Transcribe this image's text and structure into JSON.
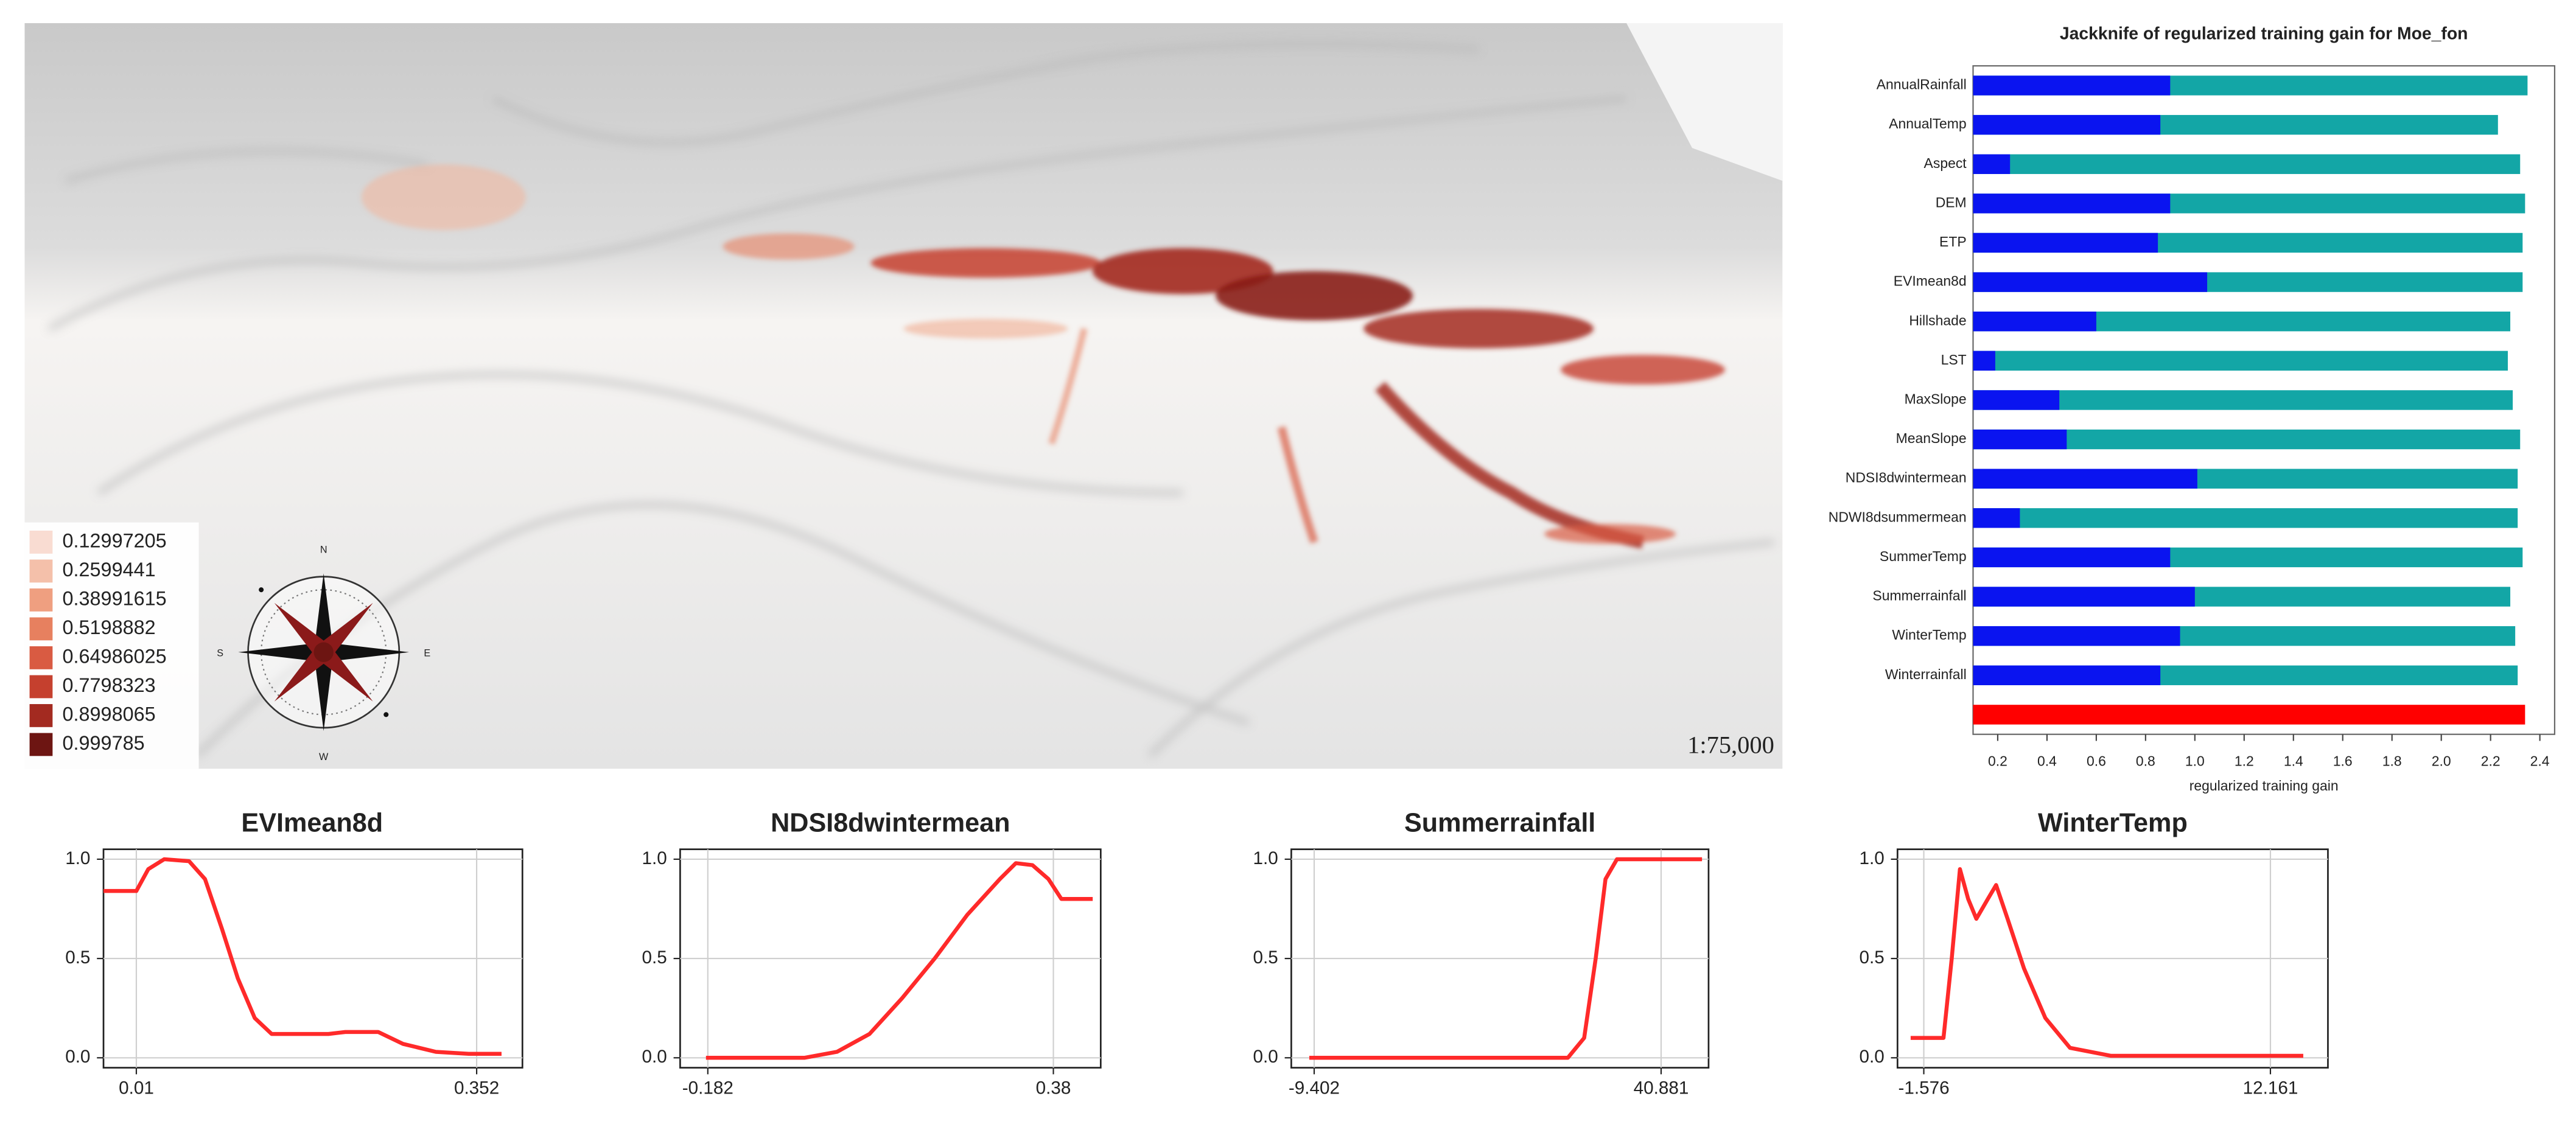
{
  "map": {
    "legend": {
      "labels": [
        "0.12997205",
        "0.2599441",
        "0.38991615",
        "0.5198882",
        "0.64986025",
        "0.7798323",
        "0.8998065",
        "0.999785"
      ],
      "colors": [
        "#f9dcd2",
        "#f4c0aa",
        "#ef9f80",
        "#e7805f",
        "#d95b42",
        "#c5402e",
        "#a32a20",
        "#6d1512"
      ]
    },
    "scale": "1:75,000",
    "compass": [
      "N",
      "S",
      "E",
      "W"
    ]
  },
  "chart_data": [
    {
      "type": "bar",
      "orientation": "horizontal",
      "title": "Jackknife of regularized training gain for Moe_fon",
      "x_label": "regularized training gain",
      "categories": [
        "AnnualRainfall",
        "AnnualTemp",
        "Aspect",
        "DEM",
        "ETP",
        "EVImean8d",
        "Hillshade",
        "LST",
        "MaxSlope",
        "MeanSlope",
        "NDSI8dwintermean",
        "NDWI8dsummermean",
        "SummerTemp",
        "Summerrainfall",
        "WinterTemp",
        "Winterrainfall",
        null
      ],
      "series": [
        {
          "color": "#13a6a6",
          "values": [
            2.35,
            2.23,
            2.32,
            2.34,
            2.33,
            2.33,
            2.28,
            2.27,
            2.29,
            2.32,
            2.31,
            2.31,
            2.33,
            2.28,
            2.3,
            2.31,
            null
          ]
        },
        {
          "color": "#0a14f0",
          "values": [
            0.9,
            0.86,
            0.25,
            0.9,
            0.85,
            1.05,
            0.6,
            0.19,
            0.45,
            0.48,
            1.01,
            0.29,
            0.9,
            1.0,
            0.94,
            0.86,
            null
          ]
        },
        {
          "color": "#ff0000",
          "values": [
            null,
            null,
            null,
            null,
            null,
            null,
            null,
            null,
            null,
            null,
            null,
            null,
            null,
            null,
            null,
            null,
            2.34
          ]
        }
      ],
      "xlim": [
        0.1,
        2.46
      ],
      "xticks": [
        0.2,
        0.4,
        0.6,
        0.8,
        {
          "value": 1,
          "label": "1.0"
        },
        1.2,
        1.4,
        1.6,
        1.8,
        {
          "value": 2,
          "label": "2.0"
        },
        2.2,
        2.4
      ]
    },
    {
      "type": "line",
      "title": "EVImean8d",
      "color": "#ff2a2a",
      "x": [
        -0.023,
        0.01,
        0.022,
        0.038,
        0.063,
        0.079,
        0.096,
        0.112,
        0.129,
        0.146,
        0.203,
        0.22,
        0.253,
        0.278,
        0.311,
        0.344,
        0.377
      ],
      "values": [
        0.84,
        0.84,
        0.95,
        1.0,
        0.99,
        0.9,
        0.65,
        0.4,
        0.2,
        0.12,
        0.12,
        0.13,
        0.13,
        0.07,
        0.03,
        0.02,
        0.02
      ],
      "xlim": [
        -0.023,
        0.398
      ],
      "ylim": [
        -0.05,
        1.05
      ],
      "xticks": [
        0.01,
        0.352
      ],
      "yticks": [
        {
          "value": 0,
          "label": "0.0"
        },
        0.5,
        {
          "value": 1,
          "label": "1.0"
        }
      ],
      "grid": true
    },
    {
      "type": "line",
      "title": "NDSI8dwintermean",
      "color": "#ff2a2a",
      "x": [
        -0.185,
        -0.025,
        0.028,
        0.081,
        0.134,
        0.187,
        0.24,
        0.293,
        0.319,
        0.346,
        0.372,
        0.393,
        0.444
      ],
      "values": [
        0,
        0,
        0.03,
        0.12,
        0.3,
        0.5,
        0.72,
        0.9,
        0.98,
        0.97,
        0.9,
        0.8,
        0.8
      ],
      "xlim": [
        -0.227,
        0.457
      ],
      "ylim": [
        -0.05,
        1.05
      ],
      "xticks": [
        -0.182,
        0.38
      ],
      "yticks": [
        {
          "value": 0,
          "label": "0.0"
        },
        0.5,
        {
          "value": 1,
          "label": "1.0"
        }
      ],
      "grid": true
    },
    {
      "type": "line",
      "title": "Summerrainfall",
      "color": "#ff2a2a",
      "x": [
        -10.11,
        27.36,
        29.73,
        31.4,
        32.82,
        34.48,
        46.81
      ],
      "values": [
        0,
        0,
        0.1,
        0.5,
        0.9,
        1.0,
        1.0
      ],
      "xlim": [
        -12.72,
        47.76
      ],
      "ylim": [
        -0.05,
        1.05
      ],
      "xticks": [
        -9.402,
        40.881
      ],
      "yticks": [
        {
          "value": 0,
          "label": "0.0"
        },
        0.5,
        {
          "value": 1,
          "label": "1.0"
        }
      ],
      "grid": true
    },
    {
      "type": "line",
      "title": "WinterTemp",
      "color": "#ff2a2a",
      "x": [
        -2.097,
        -0.795,
        -0.469,
        -0.144,
        0.182,
        0.507,
        0.963,
        1.289,
        1.744,
        2.395,
        3.242,
        4.218,
        5.846,
        13.463
      ],
      "values": [
        0.1,
        0.1,
        0.5,
        0.95,
        0.8,
        0.7,
        0.8,
        0.87,
        0.7,
        0.45,
        0.2,
        0.05,
        0.01,
        0.01
      ],
      "xlim": [
        -2.618,
        14.44
      ],
      "ylim": [
        -0.05,
        1.05
      ],
      "xticks": [
        -1.576,
        12.161
      ],
      "yticks": [
        {
          "value": 0,
          "label": "0.0"
        },
        0.5,
        {
          "value": 1,
          "label": "1.0"
        }
      ],
      "grid": true
    }
  ]
}
